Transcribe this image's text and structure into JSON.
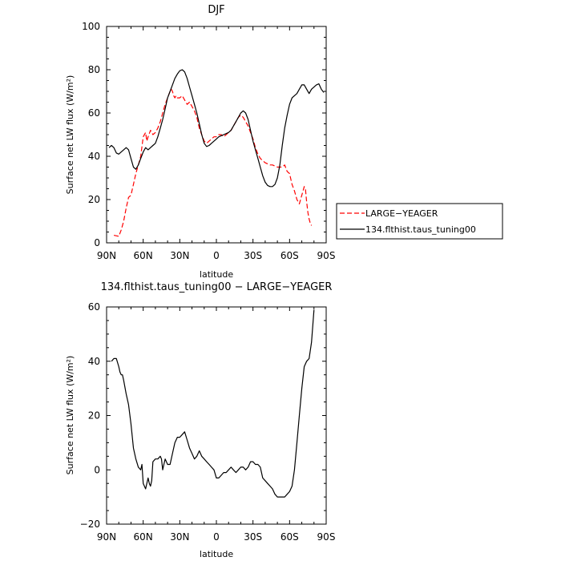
{
  "chart_data": [
    {
      "type": "line",
      "title": "DJF",
      "xlabel": "latitude",
      "ylabel": "Surface net LW flux (W/m²)",
      "x_ticks": [
        {
          "value": 90,
          "label": "90N"
        },
        {
          "value": 60,
          "label": "60N"
        },
        {
          "value": 30,
          "label": "30N"
        },
        {
          "value": 0,
          "label": "0"
        },
        {
          "value": -30,
          "label": "30S"
        },
        {
          "value": -60,
          "label": "60S"
        },
        {
          "value": -90,
          "label": "90S"
        }
      ],
      "y_ticks": [
        0,
        20,
        40,
        60,
        80,
        100
      ],
      "xlim": [
        90,
        -90
      ],
      "ylim": [
        0,
        100
      ],
      "legend_position": "right",
      "series": [
        {
          "name": "LARGE−YEAGER",
          "color": "#ff0000",
          "dash": "dashed",
          "x": [
            84,
            80,
            78,
            76,
            74,
            72,
            70,
            68,
            66,
            64,
            62,
            60,
            58,
            57,
            56,
            54,
            52,
            50,
            48,
            46,
            44,
            42,
            40,
            38,
            37,
            36,
            35,
            34,
            33,
            32,
            30,
            28,
            26,
            24,
            22,
            20,
            18,
            16,
            14,
            12,
            10,
            8,
            6,
            4,
            2,
            0,
            -2,
            -4,
            -6,
            -8,
            -10,
            -12,
            -14,
            -16,
            -18,
            -20,
            -22,
            -24,
            -26,
            -28,
            -30,
            -32,
            -34,
            -36,
            -38,
            -40,
            -42,
            -44,
            -46,
            -48,
            -50,
            -52,
            -54,
            -56,
            -58,
            -60,
            -62,
            -64,
            -66,
            -68,
            -70,
            -72,
            -73,
            -74,
            -75,
            -76,
            -77,
            -78
          ],
          "y": [
            3.5,
            3,
            6,
            10,
            16,
            21,
            22,
            27,
            32,
            36,
            40,
            49,
            51,
            47,
            49,
            52,
            50,
            51,
            53,
            56,
            60,
            64,
            67,
            70,
            71,
            70,
            68,
            67,
            68,
            67,
            67,
            68,
            66,
            64,
            65,
            63,
            61,
            58,
            53,
            50,
            47,
            46,
            47,
            48,
            49,
            49,
            50,
            50,
            49,
            50,
            51,
            52,
            54,
            56,
            58,
            59,
            58,
            56,
            54,
            51,
            48,
            44,
            41,
            39,
            38,
            37,
            36.5,
            36,
            36,
            35.5,
            35,
            35,
            35,
            36,
            33,
            32,
            27,
            24,
            20,
            18,
            22,
            26,
            25,
            19,
            14,
            11,
            9,
            8
          ]
        },
        {
          "name": "134.flthist.taus_tuning00",
          "color": "#000000",
          "dash": "solid",
          "x": [
            88,
            86,
            84,
            82,
            80,
            78,
            76,
            74,
            72,
            70,
            68,
            66,
            64,
            62,
            60,
            58,
            56,
            54,
            52,
            50,
            48,
            46,
            44,
            42,
            40,
            38,
            36,
            34,
            32,
            30,
            28,
            26,
            24,
            22,
            20,
            18,
            16,
            14,
            12,
            10,
            8,
            6,
            4,
            2,
            0,
            -2,
            -4,
            -6,
            -8,
            -10,
            -12,
            -14,
            -16,
            -18,
            -20,
            -22,
            -24,
            -26,
            -28,
            -30,
            -32,
            -34,
            -36,
            -38,
            -40,
            -42,
            -44,
            -46,
            -48,
            -50,
            -52,
            -54,
            -56,
            -58,
            -60,
            -62,
            -64,
            -66,
            -68,
            -70,
            -72,
            -74,
            -76,
            -78,
            -80,
            -82,
            -84,
            -86,
            -88
          ],
          "y": [
            44,
            45,
            44,
            41.5,
            41,
            42,
            43,
            44,
            43,
            39,
            35,
            34,
            36,
            39,
            42,
            44,
            43,
            44,
            45,
            46,
            49,
            53,
            57,
            62,
            67,
            70,
            73,
            76,
            78,
            79.5,
            80,
            79,
            76,
            72,
            68,
            64,
            60,
            55,
            50,
            46,
            44.5,
            45,
            46,
            47,
            48,
            49,
            49.5,
            50,
            50.5,
            51,
            52,
            54,
            56,
            58,
            60,
            61,
            60,
            57,
            52,
            47,
            43,
            39,
            35,
            31,
            28,
            26.5,
            26,
            26,
            27,
            30,
            36,
            45,
            53,
            59,
            64,
            67,
            68,
            69,
            71,
            73,
            73,
            71,
            69,
            71,
            72,
            73,
            73.5,
            71,
            69.5
          ]
        }
      ]
    },
    {
      "type": "line",
      "title": "134.flthist.taus_tuning00 − LARGE−YEAGER",
      "xlabel": "latitude",
      "ylabel": "Surface net LW flux (W/m²)",
      "x_ticks": [
        {
          "value": 90,
          "label": "90N"
        },
        {
          "value": 60,
          "label": "60N"
        },
        {
          "value": 30,
          "label": "30N"
        },
        {
          "value": 0,
          "label": "0"
        },
        {
          "value": -30,
          "label": "30S"
        },
        {
          "value": -60,
          "label": "60S"
        },
        {
          "value": -90,
          "label": "90S"
        }
      ],
      "y_ticks": [
        -20,
        0,
        20,
        40,
        60
      ],
      "xlim": [
        90,
        -90
      ],
      "ylim": [
        -20,
        60
      ],
      "series": [
        {
          "name": "",
          "color": "#000000",
          "dash": "solid",
          "x": [
            86,
            84,
            82,
            80,
            79,
            78,
            77,
            76,
            74,
            72,
            70,
            68,
            66,
            64,
            62,
            61,
            60,
            58,
            57,
            56,
            55,
            54,
            53,
            52,
            50,
            48,
            46,
            45,
            44,
            43,
            42,
            41,
            40,
            38,
            37,
            36,
            34,
            32,
            30,
            28,
            26,
            24,
            22,
            20,
            18,
            16,
            14,
            12,
            10,
            8,
            6,
            4,
            2,
            0,
            -2,
            -4,
            -6,
            -8,
            -10,
            -12,
            -14,
            -16,
            -18,
            -20,
            -22,
            -24,
            -26,
            -28,
            -30,
            -32,
            -34,
            -36,
            -38,
            -40,
            -42,
            -44,
            -46,
            -48,
            -50,
            -52,
            -54,
            -56,
            -58,
            -60,
            -62,
            -64,
            -66,
            -68,
            -70,
            -72,
            -74,
            -76,
            -78,
            -80
          ],
          "y": [
            40,
            41,
            41,
            38,
            36,
            35,
            35,
            33,
            28,
            24,
            17,
            8,
            4,
            1,
            0,
            2,
            -5,
            -7,
            -5,
            -3,
            -5,
            -6,
            -4,
            3,
            4,
            4,
            5,
            4,
            0,
            2,
            4,
            3,
            2,
            2,
            4,
            6,
            10,
            12,
            12,
            13,
            14,
            11,
            8,
            6,
            4,
            5,
            7,
            5,
            4,
            3,
            2,
            1,
            0,
            -3,
            -3,
            -2,
            -1,
            -1,
            0,
            1,
            0,
            -1,
            0,
            1,
            1,
            0,
            1,
            3,
            3,
            2,
            2,
            1,
            -3,
            -4,
            -5,
            -6,
            -7,
            -9,
            -10,
            -10,
            -10,
            -10,
            -9,
            -8,
            -6,
            0,
            10,
            20,
            30,
            38,
            40,
            41,
            47,
            59
          ]
        }
      ]
    }
  ]
}
